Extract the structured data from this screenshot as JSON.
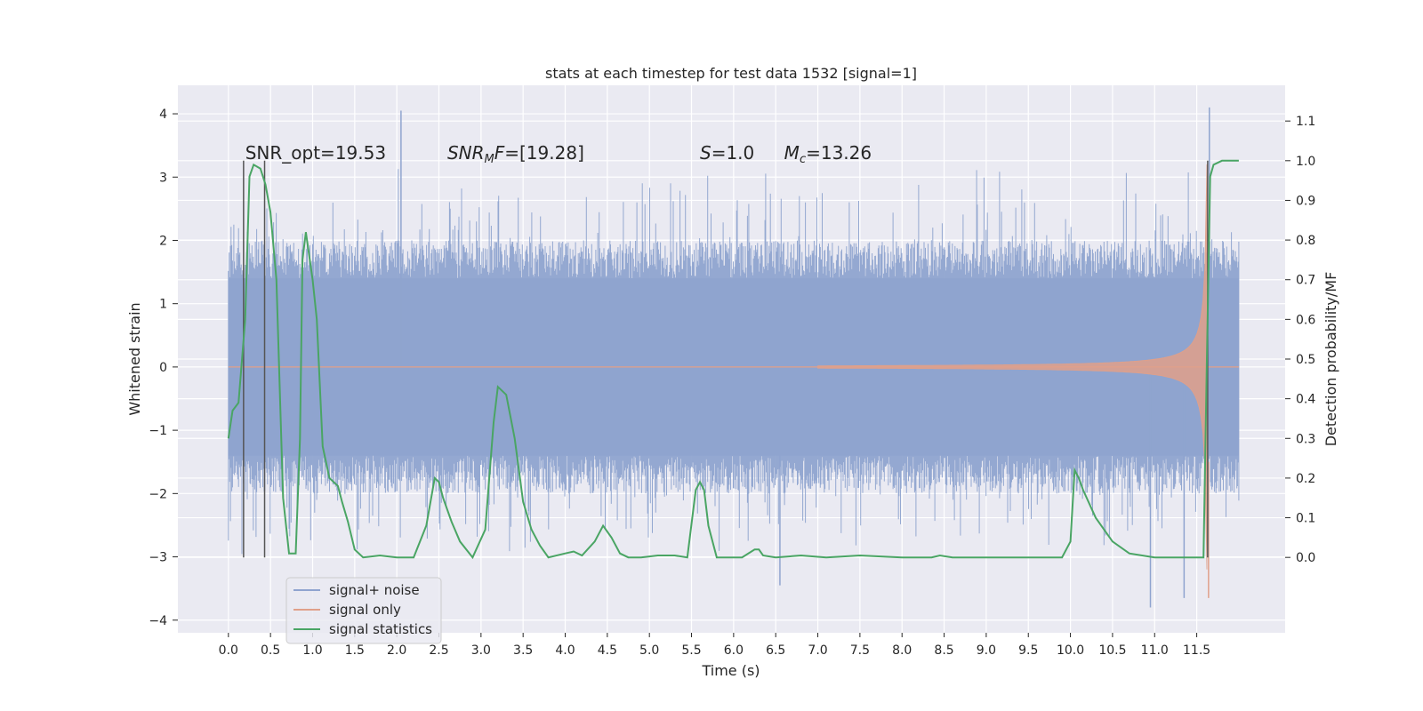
{
  "chart_data": {
    "type": "line",
    "title": "stats at each timestep for test data 1532 [signal=1]",
    "xlabel": "Time (s)",
    "ylabel_left": "Whitened strain",
    "ylabel_right": "Detection probability/MF",
    "xlim": [
      -0.6,
      12.55
    ],
    "ylim_left": [
      -4.2,
      4.45
    ],
    "ylim_right": [
      -0.19,
      1.19
    ],
    "x_ticks": [
      "0.0",
      "0.5",
      "1.0",
      "1.5",
      "2.0",
      "2.5",
      "3.0",
      "3.5",
      "4.0",
      "4.5",
      "5.0",
      "5.5",
      "6.0",
      "6.5",
      "7.0",
      "7.5",
      "8.0",
      "8.5",
      "9.0",
      "9.5",
      "10.0",
      "10.5",
      "11.0",
      "11.5"
    ],
    "y_ticks_left": [
      "4",
      "3",
      "2",
      "1",
      "0",
      "−1",
      "−2",
      "−3",
      "−4"
    ],
    "y_ticks_right": [
      "1.1",
      "1.0",
      "0.9",
      "0.8",
      "0.7",
      "0.6",
      "0.5",
      "0.4",
      "0.3",
      "0.2",
      "0.1",
      "0.0"
    ],
    "grid": true,
    "legend_position": "lower-left",
    "annotations": [
      {
        "text": "SNR_opt=19.53",
        "x": 0.2,
        "y": 1.0
      },
      {
        "text": "SNR_MF=[19.28]",
        "x": 2.6,
        "y": 1.0
      },
      {
        "text": "S=1.0",
        "x": 5.6,
        "y": 1.0
      },
      {
        "text": "M_c=13.26",
        "x": 6.6,
        "y": 1.0
      }
    ],
    "vertical_markers_x": [
      0.18,
      0.43,
      11.63
    ],
    "series": [
      {
        "name": "signal+ noise",
        "axis": "left",
        "color": "#8fa4cf",
        "x_range": [
          0.0,
          12.0
        ],
        "noise_envelope": {
          "typical": 1.4,
          "peak": 4.1,
          "min": -3.8
        },
        "notable_peaks": [
          {
            "x": 2.05,
            "y": 4.05
          },
          {
            "x": 11.65,
            "y": 4.1
          },
          {
            "x": 10.95,
            "y": -3.8
          },
          {
            "x": 11.35,
            "y": -3.65
          },
          {
            "x": 6.55,
            "y": -3.45
          }
        ]
      },
      {
        "name": "signal only",
        "axis": "left",
        "color": "#e0a08a",
        "chirp_start_x": 7.0,
        "merger_x": 11.62,
        "peak_amplitude": 3.2,
        "end_x": 12.0
      },
      {
        "name": "signal statistics",
        "axis": "right",
        "color": "#4aa564",
        "x": [
          0.0,
          0.05,
          0.12,
          0.2,
          0.25,
          0.3,
          0.38,
          0.44,
          0.5,
          0.57,
          0.65,
          0.72,
          0.8,
          0.85,
          0.88,
          0.92,
          0.96,
          1.0,
          1.05,
          1.12,
          1.2,
          1.25,
          1.3,
          1.35,
          1.42,
          1.5,
          1.6,
          1.8,
          2.0,
          2.2,
          2.35,
          2.45,
          2.5,
          2.55,
          2.65,
          2.75,
          2.9,
          3.05,
          3.15,
          3.2,
          3.3,
          3.4,
          3.5,
          3.6,
          3.7,
          3.8,
          4.0,
          4.1,
          4.2,
          4.35,
          4.45,
          4.55,
          4.65,
          4.75,
          4.9,
          5.1,
          5.3,
          5.45,
          5.55,
          5.6,
          5.65,
          5.7,
          5.8,
          5.95,
          6.1,
          6.25,
          6.3,
          6.35,
          6.5,
          6.8,
          7.1,
          7.5,
          8.0,
          8.35,
          8.45,
          8.6,
          9.0,
          9.5,
          9.8,
          9.9,
          10.0,
          10.05,
          10.1,
          10.15,
          10.3,
          10.5,
          10.7,
          11.0,
          11.3,
          11.58,
          11.62,
          11.66,
          11.7,
          11.8,
          12.0
        ],
        "y": [
          0.3,
          0.37,
          0.39,
          0.6,
          0.96,
          0.99,
          0.98,
          0.94,
          0.87,
          0.7,
          0.15,
          0.01,
          0.01,
          0.3,
          0.75,
          0.82,
          0.76,
          0.7,
          0.6,
          0.28,
          0.2,
          0.19,
          0.18,
          0.14,
          0.09,
          0.02,
          0.0,
          0.005,
          0.0,
          0.0,
          0.08,
          0.2,
          0.19,
          0.15,
          0.09,
          0.04,
          0.0,
          0.07,
          0.34,
          0.43,
          0.41,
          0.3,
          0.14,
          0.07,
          0.03,
          0.0,
          0.01,
          0.015,
          0.005,
          0.04,
          0.08,
          0.05,
          0.01,
          0.0,
          0.0,
          0.005,
          0.005,
          0.0,
          0.17,
          0.19,
          0.17,
          0.08,
          0.0,
          0.0,
          0.0,
          0.02,
          0.02,
          0.005,
          0.0,
          0.005,
          0.0,
          0.005,
          0.0,
          0.0,
          0.005,
          0.0,
          0.0,
          0.0,
          0.0,
          0.0,
          0.04,
          0.22,
          0.2,
          0.17,
          0.1,
          0.04,
          0.01,
          0.0,
          0.0,
          0.0,
          0.5,
          0.96,
          0.99,
          1.0,
          1.0
        ]
      }
    ]
  }
}
